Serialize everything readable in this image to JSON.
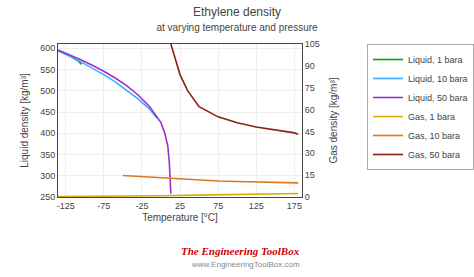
{
  "chart_data": {
    "type": "line",
    "title": "Ethylene density",
    "subtitle": "at varying temperature and pressure",
    "xlabel": "Temperature [°C]",
    "ylabel": "Liquid density [kg/m³]",
    "y2label": "Gas density [kg/m³]",
    "xlim": [
      -135,
      185
    ],
    "ylim": [
      250,
      610
    ],
    "y2lim": [
      0,
      105
    ],
    "xticks": [
      -125,
      -75,
      -25,
      25,
      75,
      125,
      175
    ],
    "yticks": [
      250,
      300,
      350,
      400,
      450,
      500,
      550,
      600
    ],
    "y2ticks": [
      0,
      15,
      30,
      45,
      60,
      75,
      90,
      105
    ],
    "grid": true,
    "legend": "upper right",
    "series": [
      {
        "name": "Liquid, 1 bara",
        "color": "#00aa00",
        "axis": "y",
        "x": [
          -135,
          -132,
          -128,
          -124,
          -120,
          -116,
          -112,
          -108,
          -104
        ],
        "values": [
          594,
          592,
          589,
          586,
          582,
          578,
          574,
          569,
          562
        ]
      },
      {
        "name": "Liquid, 10 bara",
        "color": "#44aaff",
        "axis": "y",
        "x": [
          -135,
          -120,
          -105,
          -90,
          -75,
          -60,
          -45,
          -30,
          -15,
          -5
        ],
        "values": [
          594,
          582,
          568,
          554,
          538,
          521,
          502,
          481,
          457,
          435
        ]
      },
      {
        "name": "Liquid, 50 bara",
        "color": "#9933cc",
        "axis": "y",
        "x": [
          -135,
          -120,
          -105,
          -90,
          -75,
          -60,
          -45,
          -30,
          -15,
          0,
          5,
          9,
          11,
          13
        ],
        "values": [
          596,
          585,
          573,
          560,
          546,
          530,
          512,
          490,
          463,
          425,
          400,
          370,
          330,
          258
        ]
      },
      {
        "name": "Gas, 1 bara",
        "color": "#ddaa00",
        "axis": "y2",
        "x": [
          -135,
          -100,
          -50,
          0,
          50,
          100,
          150,
          180
        ],
        "values": [
          0.3,
          0.4,
          0.5,
          0.9,
          1.3,
          1.7,
          2.1,
          2.4
        ]
      },
      {
        "name": "Gas, 10 bara",
        "color": "#dd7722",
        "axis": "y2",
        "x": [
          -50,
          -25,
          0,
          25,
          50,
          75,
          100,
          125,
          150,
          175,
          180
        ],
        "values": [
          14.8,
          14.0,
          13.2,
          12.3,
          11.5,
          11.0,
          10.6,
          10.3,
          10.1,
          9.8,
          9.7
        ]
      },
      {
        "name": "Gas, 50 bara",
        "color": "#882211",
        "axis": "y2",
        "x": [
          13,
          16,
          20,
          25,
          35,
          50,
          75,
          100,
          125,
          150,
          175,
          180
        ],
        "values": [
          105,
          100,
          93,
          84,
          73,
          62,
          55,
          51,
          48,
          46,
          44,
          43
        ]
      }
    ],
    "annotations": [
      {
        "text": "The Engineering ToolBox",
        "color": "#cc0000"
      },
      {
        "text": "www.EngineeringToolBox.com",
        "color": "#888888"
      }
    ]
  }
}
